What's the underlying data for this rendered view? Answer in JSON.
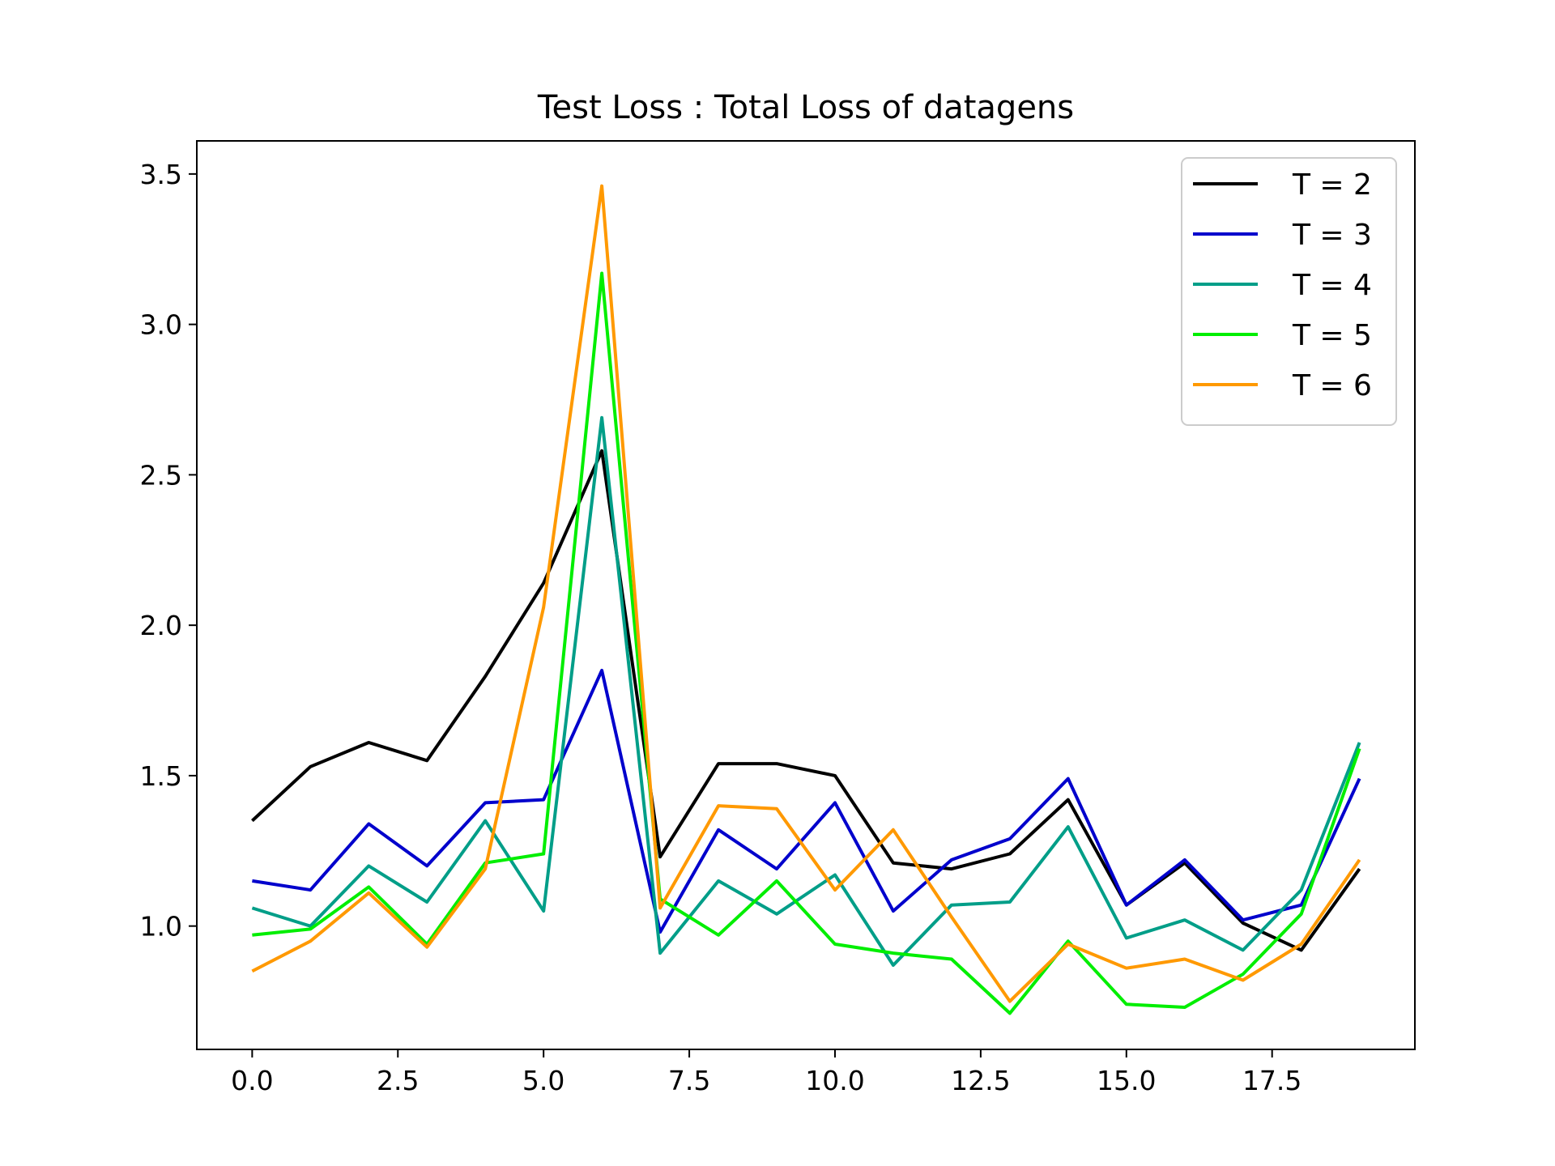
{
  "chart_data": {
    "type": "line",
    "title": "Test Loss : Total Loss of datagens",
    "xlabel": "",
    "ylabel": "",
    "xlim": [
      -0.95,
      19.95
    ],
    "ylim": [
      0.59,
      3.61
    ],
    "xticks": [
      0,
      2.5,
      5,
      7.5,
      10,
      12.5,
      15,
      17.5
    ],
    "xtick_labels": [
      "0.0",
      "2.5",
      "5.0",
      "7.5",
      "10.0",
      "12.5",
      "15.0",
      "17.5"
    ],
    "yticks": [
      1.0,
      1.5,
      2.0,
      2.5,
      3.0,
      3.5
    ],
    "ytick_labels": [
      "1.0",
      "1.5",
      "2.0",
      "2.5",
      "3.0",
      "3.5"
    ],
    "grid": false,
    "legend_position": "top-right",
    "x": [
      0,
      1,
      2,
      3,
      4,
      5,
      6,
      7,
      8,
      9,
      10,
      11,
      12,
      13,
      14,
      15,
      16,
      17,
      18,
      19
    ],
    "series": [
      {
        "name": "T = 2",
        "color": "#000000",
        "values": [
          1.35,
          1.53,
          1.61,
          1.55,
          1.83,
          2.14,
          2.58,
          1.23,
          1.54,
          1.54,
          1.5,
          1.21,
          1.19,
          1.24,
          1.42,
          1.07,
          1.21,
          1.01,
          0.92,
          1.19
        ]
      },
      {
        "name": "T = 3",
        "color": "#0000cc",
        "values": [
          1.15,
          1.12,
          1.34,
          1.2,
          1.41,
          1.42,
          1.85,
          0.98,
          1.32,
          1.19,
          1.41,
          1.05,
          1.22,
          1.29,
          1.49,
          1.07,
          1.22,
          1.02,
          1.07,
          1.49
        ]
      },
      {
        "name": "T = 4",
        "color": "#009e88",
        "values": [
          1.06,
          1.0,
          1.2,
          1.08,
          1.35,
          1.05,
          2.69,
          0.91,
          1.15,
          1.04,
          1.17,
          0.87,
          1.07,
          1.08,
          1.33,
          0.96,
          1.02,
          0.92,
          1.12,
          1.61
        ]
      },
      {
        "name": "T = 5",
        "color": "#00ee00",
        "values": [
          0.97,
          0.99,
          1.13,
          0.94,
          1.21,
          1.24,
          3.17,
          1.09,
          0.97,
          1.15,
          0.94,
          0.91,
          0.89,
          0.71,
          0.95,
          0.74,
          0.73,
          0.84,
          1.04,
          1.59
        ]
      },
      {
        "name": "T = 6",
        "color": "#ff9900",
        "values": [
          0.85,
          0.95,
          1.11,
          0.93,
          1.19,
          2.06,
          3.46,
          1.06,
          1.4,
          1.39,
          1.12,
          1.32,
          1.03,
          0.75,
          0.94,
          0.86,
          0.89,
          0.82,
          0.94,
          1.22
        ]
      }
    ]
  }
}
